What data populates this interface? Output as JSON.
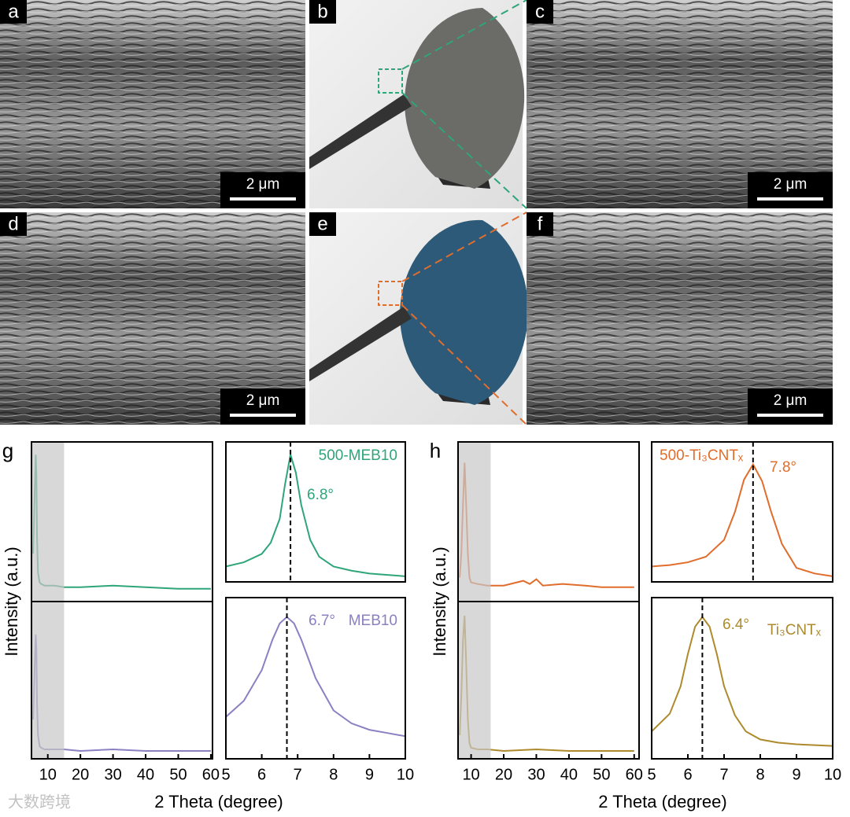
{
  "images": [
    {
      "label": "a",
      "scale_bar": "2 μm"
    },
    {
      "label": "b"
    },
    {
      "label": "c",
      "scale_bar": "2 μm"
    },
    {
      "label": "d",
      "scale_bar": "2 μm"
    },
    {
      "label": "e"
    },
    {
      "label": "f",
      "scale_bar": "2 μm"
    }
  ],
  "chart_groups": [
    {
      "label": "g",
      "y_label": "Intensity (a.u.)",
      "x_label": "2 Theta (degree)"
    },
    {
      "label": "h",
      "y_label": "Intensity (a.u.)",
      "x_label": "2 Theta (degree)"
    }
  ],
  "watermark": "大数跨境",
  "chart_data": [
    {
      "type": "line",
      "xlim": [
        5,
        60.5
      ],
      "ylim": [
        0,
        1
      ],
      "highlight": [
        5,
        15
      ],
      "series": [
        {
          "color": "#2fa57a",
          "x": [
            5.5,
            6,
            6.3,
            6.5,
            6.7,
            7,
            7.5,
            8,
            9,
            12,
            15,
            20,
            30,
            40,
            50,
            60
          ],
          "values": [
            0.3,
            0.7,
            0.92,
            0.8,
            0.4,
            0.18,
            0.12,
            0.11,
            0.1,
            0.1,
            0.09,
            0.09,
            0.1,
            0.09,
            0.08,
            0.08
          ]
        }
      ]
    },
    {
      "type": "line",
      "xlim": [
        5,
        60.5
      ],
      "ylim": [
        0,
        1
      ],
      "highlight": [
        5,
        15
      ],
      "xticks": [
        10,
        20,
        30,
        40,
        50,
        60
      ],
      "series": [
        {
          "color": "#8a80c2",
          "x": [
            5.5,
            6,
            6.3,
            6.5,
            6.7,
            7,
            7.5,
            8,
            9,
            12,
            15,
            20,
            30,
            40,
            50,
            60
          ],
          "values": [
            0.25,
            0.6,
            0.79,
            0.7,
            0.35,
            0.15,
            0.08,
            0.07,
            0.06,
            0.06,
            0.06,
            0.05,
            0.06,
            0.05,
            0.05,
            0.05
          ]
        }
      ]
    },
    {
      "type": "line",
      "xlim": [
        5,
        10
      ],
      "ylim": [
        0,
        1
      ],
      "series": [
        {
          "name": "500-MEB10",
          "color": "#2fa57a",
          "x": [
            5,
            5.5,
            6,
            6.25,
            6.5,
            6.65,
            6.8,
            6.95,
            7.1,
            7.35,
            7.6,
            8,
            8.5,
            9,
            9.5,
            10
          ],
          "values": [
            0.11,
            0.14,
            0.2,
            0.28,
            0.45,
            0.7,
            0.91,
            0.78,
            0.55,
            0.3,
            0.18,
            0.11,
            0.08,
            0.06,
            0.05,
            0.04
          ],
          "peak": {
            "value": 6.8,
            "label": "6.8°"
          }
        }
      ]
    },
    {
      "type": "line",
      "xlim": [
        5,
        10
      ],
      "ylim": [
        0,
        1
      ],
      "xticks": [
        5,
        6,
        7,
        8,
        9,
        10
      ],
      "series": [
        {
          "name": "MEB10",
          "color": "#8a80c2",
          "x": [
            5,
            5.5,
            6,
            6.3,
            6.5,
            6.7,
            6.9,
            7.1,
            7.5,
            8,
            8.5,
            9,
            9.5,
            10
          ],
          "values": [
            0.26,
            0.36,
            0.55,
            0.74,
            0.84,
            0.88,
            0.84,
            0.74,
            0.5,
            0.3,
            0.22,
            0.18,
            0.16,
            0.14
          ],
          "peak": {
            "value": 6.7,
            "label": "6.7°"
          }
        }
      ]
    },
    {
      "type": "line",
      "xlim": [
        6,
        61.5
      ],
      "ylim": [
        0,
        1
      ],
      "highlight": [
        6,
        16
      ],
      "series": [
        {
          "color": "#e06d2c",
          "x": [
            6.5,
            7,
            7.5,
            8,
            8.5,
            9,
            9.5,
            10,
            12,
            15,
            20,
            26,
            28,
            30,
            32,
            38,
            45,
            50,
            60
          ],
          "values": [
            0.15,
            0.3,
            0.6,
            0.87,
            0.6,
            0.3,
            0.15,
            0.12,
            0.11,
            0.1,
            0.1,
            0.13,
            0.11,
            0.14,
            0.1,
            0.11,
            0.1,
            0.09,
            0.09
          ]
        }
      ]
    },
    {
      "type": "line",
      "xlim": [
        6,
        61.5
      ],
      "ylim": [
        0,
        1
      ],
      "highlight": [
        6,
        16
      ],
      "xticks": [
        10,
        20,
        30,
        40,
        50,
        60
      ],
      "series": [
        {
          "color": "#ad8a2c",
          "x": [
            6.5,
            7,
            7.5,
            8,
            8.5,
            9,
            9.5,
            10,
            12,
            15,
            20,
            30,
            40,
            50,
            60
          ],
          "values": [
            0.15,
            0.4,
            0.75,
            0.91,
            0.6,
            0.25,
            0.1,
            0.07,
            0.06,
            0.06,
            0.05,
            0.06,
            0.05,
            0.05,
            0.05
          ]
        }
      ]
    },
    {
      "type": "line",
      "xlim": [
        5,
        10
      ],
      "ylim": [
        0,
        1
      ],
      "series": [
        {
          "name": "500-Ti₃CNTₓ",
          "color": "#e06d2c",
          "x": [
            5,
            5.5,
            6,
            6.5,
            7,
            7.3,
            7.55,
            7.8,
            8.05,
            8.3,
            8.6,
            9,
            9.5,
            10
          ],
          "values": [
            0.11,
            0.12,
            0.14,
            0.18,
            0.3,
            0.5,
            0.73,
            0.84,
            0.72,
            0.5,
            0.27,
            0.1,
            0.06,
            0.04
          ],
          "peak": {
            "value": 7.8,
            "label": "7.8°"
          }
        }
      ]
    },
    {
      "type": "line",
      "xlim": [
        5,
        10
      ],
      "ylim": [
        0,
        1
      ],
      "xticks": [
        5,
        6,
        7,
        8,
        9,
        10
      ],
      "series": [
        {
          "name": "Ti₃CNTₓ",
          "color": "#ad8a2c",
          "x": [
            5,
            5.5,
            5.8,
            6,
            6.2,
            6.4,
            6.6,
            6.8,
            7,
            7.3,
            7.6,
            8,
            8.5,
            9,
            10
          ],
          "values": [
            0.17,
            0.28,
            0.45,
            0.65,
            0.82,
            0.88,
            0.82,
            0.65,
            0.45,
            0.27,
            0.17,
            0.12,
            0.1,
            0.09,
            0.08
          ],
          "peak": {
            "value": 6.4,
            "label": "6.4°"
          }
        }
      ]
    }
  ]
}
